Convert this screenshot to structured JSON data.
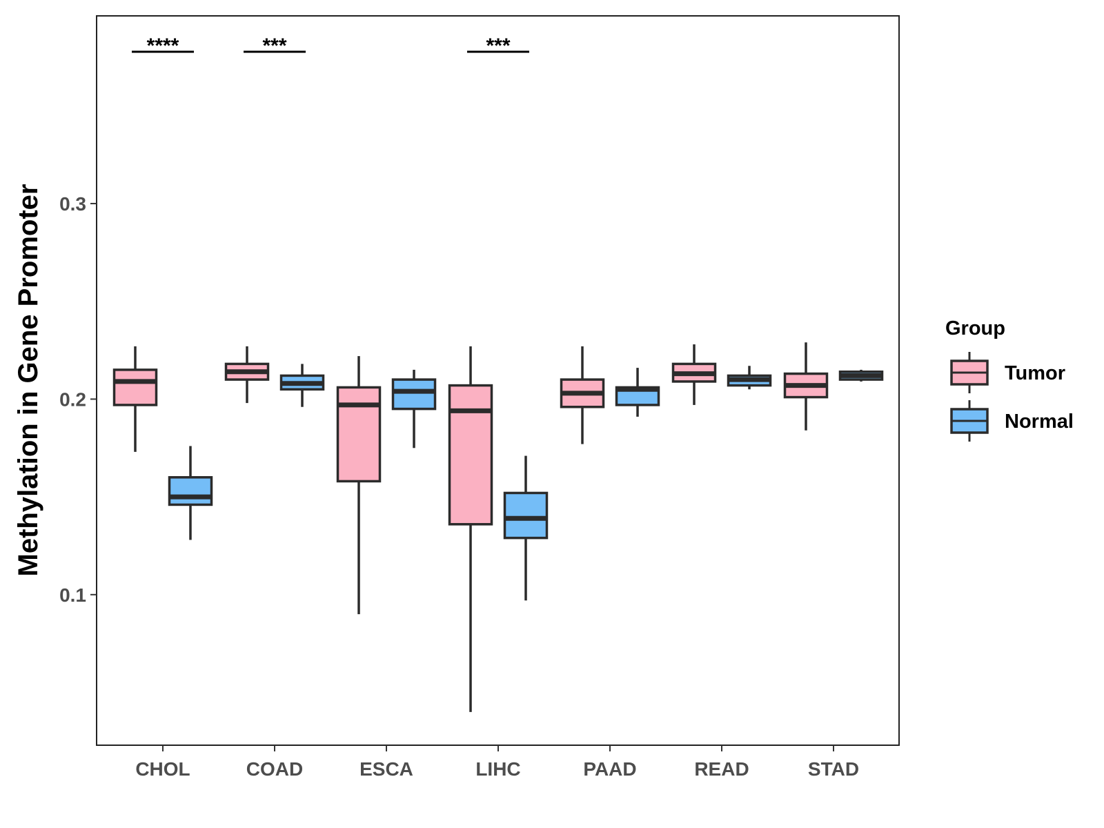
{
  "chart_data": {
    "type": "boxplot",
    "title": "",
    "xlabel": "",
    "ylabel": "Methylation in Gene Promoter",
    "ylim": [
      0.023,
      0.396
    ],
    "yticks": [
      0.1,
      0.2,
      0.3
    ],
    "ytick_labels": [
      "0.1",
      "0.2",
      "0.3"
    ],
    "categories": [
      "CHOL",
      "COAD",
      "ESCA",
      "LIHC",
      "PAAD",
      "READ",
      "STAD"
    ],
    "legend": {
      "title": "Group",
      "position": "right",
      "entries": [
        {
          "name": "Tumor",
          "color": "#fbb1c2"
        },
        {
          "name": "Normal",
          "color": "#74bdf7"
        }
      ]
    },
    "series": [
      {
        "name": "Tumor",
        "color": "#fbb1c2",
        "boxes": [
          {
            "category": "CHOL",
            "min": 0.173,
            "q1": 0.197,
            "median": 0.209,
            "q3": 0.215,
            "max": 0.227
          },
          {
            "category": "COAD",
            "min": 0.198,
            "q1": 0.21,
            "median": 0.214,
            "q3": 0.218,
            "max": 0.227
          },
          {
            "category": "ESCA",
            "min": 0.09,
            "q1": 0.158,
            "median": 0.197,
            "q3": 0.206,
            "max": 0.222
          },
          {
            "category": "LIHC",
            "min": 0.04,
            "q1": 0.136,
            "median": 0.194,
            "q3": 0.207,
            "max": 0.227
          },
          {
            "category": "PAAD",
            "min": 0.177,
            "q1": 0.196,
            "median": 0.203,
            "q3": 0.21,
            "max": 0.227
          },
          {
            "category": "READ",
            "min": 0.197,
            "q1": 0.209,
            "median": 0.213,
            "q3": 0.218,
            "max": 0.228
          },
          {
            "category": "STAD",
            "min": 0.184,
            "q1": 0.201,
            "median": 0.207,
            "q3": 0.213,
            "max": 0.229
          }
        ]
      },
      {
        "name": "Normal",
        "color": "#74bdf7",
        "boxes": [
          {
            "category": "CHOL",
            "min": 0.128,
            "q1": 0.146,
            "median": 0.15,
            "q3": 0.16,
            "max": 0.176
          },
          {
            "category": "COAD",
            "min": 0.196,
            "q1": 0.205,
            "median": 0.208,
            "q3": 0.212,
            "max": 0.218
          },
          {
            "category": "ESCA",
            "min": 0.175,
            "q1": 0.195,
            "median": 0.204,
            "q3": 0.21,
            "max": 0.215
          },
          {
            "category": "LIHC",
            "min": 0.097,
            "q1": 0.129,
            "median": 0.139,
            "q3": 0.152,
            "max": 0.171
          },
          {
            "category": "PAAD",
            "min": 0.191,
            "q1": 0.197,
            "median": 0.205,
            "q3": 0.206,
            "max": 0.216
          },
          {
            "category": "READ",
            "min": 0.205,
            "q1": 0.207,
            "median": 0.21,
            "q3": 0.212,
            "max": 0.217
          },
          {
            "category": "STAD",
            "min": 0.209,
            "q1": 0.21,
            "median": 0.212,
            "q3": 0.214,
            "max": 0.215
          }
        ]
      }
    ],
    "annotations": [
      {
        "category": "CHOL",
        "label": "****"
      },
      {
        "category": "COAD",
        "label": "***"
      },
      {
        "category": "LIHC",
        "label": "***"
      }
    ]
  }
}
